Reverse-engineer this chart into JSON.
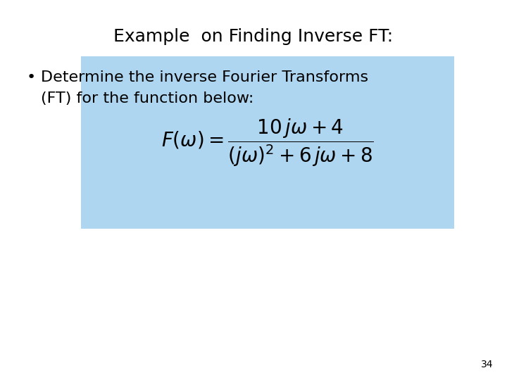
{
  "title": "Example  on Finding Inverse FT:",
  "bullet_line1": "Determine the inverse Fourier Transforms",
  "bullet_line2": "(FT) for the function below:",
  "box_color": "#aed6f1",
  "background_color": "#ffffff",
  "title_fontsize": 18,
  "bullet_fontsize": 16,
  "formula_fontsize": 20,
  "page_number": "34",
  "page_number_fontsize": 10
}
